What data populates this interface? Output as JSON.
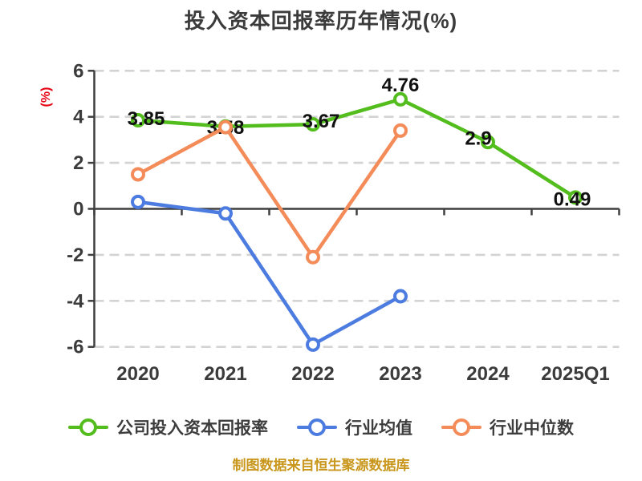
{
  "chart_data": {
    "type": "line",
    "title": "投入资本回报率历年情况(%)",
    "ylabel": "(%)",
    "categories": [
      "2020",
      "2021",
      "2022",
      "2023",
      "2024",
      "2025Q1"
    ],
    "ylim": [
      -6,
      6
    ],
    "yticks": [
      6,
      4,
      2,
      0,
      -2,
      -4,
      -6
    ],
    "grid": "horizontal-dashed",
    "legend_position": "bottom",
    "marker_style": "white-filled-circle",
    "series": [
      {
        "name": "公司投入资本回报率",
        "color": "#53bd1d",
        "values": [
          3.85,
          3.58,
          3.67,
          4.76,
          2.9,
          0.49
        ],
        "point_labels": [
          "3.85",
          "3.58",
          "3.67",
          "4.76",
          "2.9",
          "0.49"
        ]
      },
      {
        "name": "行业均值",
        "color": "#4d7ce0",
        "values": [
          0.3,
          -0.2,
          -5.9,
          -3.8,
          null,
          null
        ],
        "point_labels": null
      },
      {
        "name": "行业中位数",
        "color": "#f48c5a",
        "values": [
          1.5,
          3.55,
          -2.1,
          3.4,
          null,
          null
        ],
        "point_labels": null
      }
    ],
    "source_note": "制图数据来自恒生聚源数据库"
  },
  "colors": {
    "title_text": "#3b3b3b",
    "axis_line": "#3f3f3f",
    "tick_label_text": "#3b3b3b",
    "grid_line": "#d3d3d3",
    "value_label_text": "#111111",
    "ylabel_red": "#e60012",
    "source_note_gold": "#c8961a"
  }
}
